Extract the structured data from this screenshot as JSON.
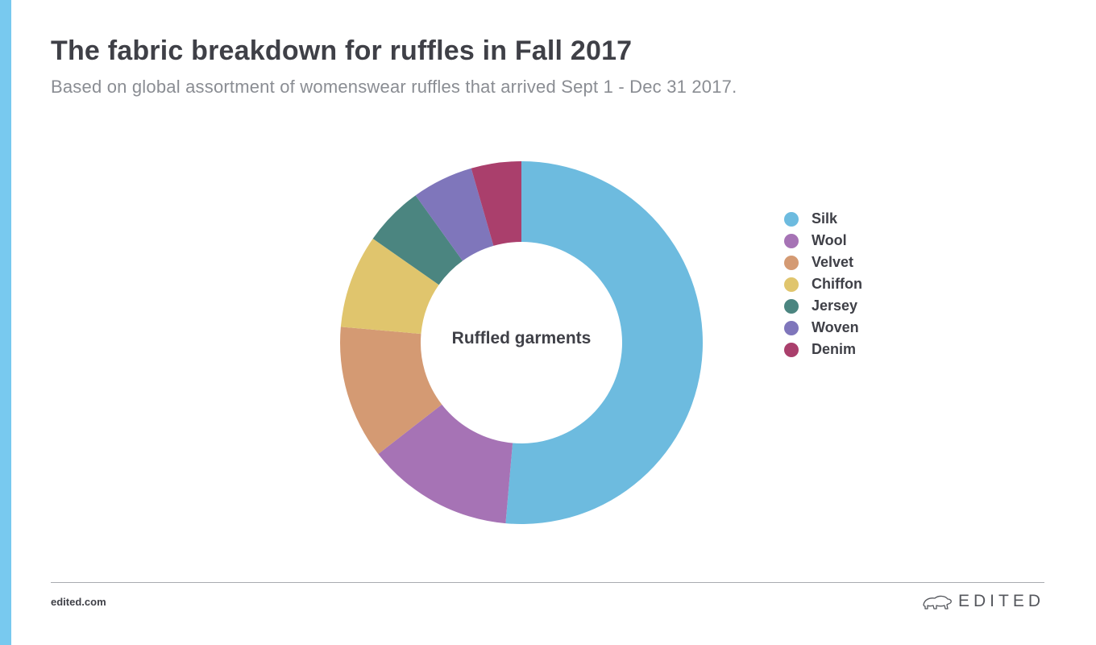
{
  "header": {
    "title": "The fabric breakdown for ruffles in Fall 2017",
    "subtitle": "Based on global assortment of womenswear ruffles that arrived Sept 1 - Dec 31 2017."
  },
  "chart_data": {
    "type": "pie",
    "donut": true,
    "center_label": "Ruffled garments",
    "categories": [
      "Silk",
      "Wool",
      "Velvet",
      "Chiffon",
      "Jersey",
      "Woven",
      "Denim"
    ],
    "values": [
      51.8,
      13.2,
      12.0,
      8.4,
      5.4,
      5.5,
      4.5
    ],
    "colors": [
      "#6dbbdf",
      "#a673b5",
      "#d49a73",
      "#e0c56d",
      "#4b8580",
      "#7f76bb",
      "#aa3f6c"
    ],
    "legend_position": "right"
  },
  "footer": {
    "site": "edited.com",
    "brand": "EDITED",
    "brand_icon": "polar-bear-icon"
  },
  "theme": {
    "accent_bar": "#78c9ef"
  }
}
